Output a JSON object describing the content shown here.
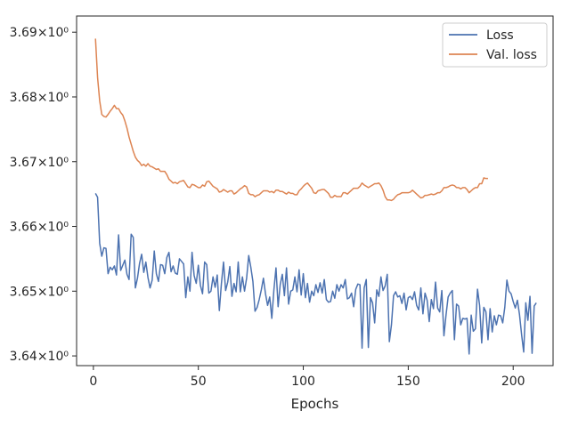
{
  "chart_data": {
    "type": "line",
    "xlabel": "Epochs",
    "ylabel": "",
    "title": "",
    "xlim": [
      -8,
      219
    ],
    "ylim": [
      3.6385,
      3.6925
    ],
    "y_scale": "log",
    "grid": false,
    "legend_position": "top-right",
    "x_ticks": [
      {
        "value": 0,
        "label": "0"
      },
      {
        "value": 50,
        "label": "50"
      },
      {
        "value": 100,
        "label": "100"
      },
      {
        "value": 150,
        "label": "150"
      },
      {
        "value": 200,
        "label": "200"
      }
    ],
    "y_ticks": [
      {
        "value": 3.64,
        "label": "3.64×10⁰"
      },
      {
        "value": 3.65,
        "label": "3.65×10⁰"
      },
      {
        "value": 3.66,
        "label": "3.66×10⁰"
      },
      {
        "value": 3.67,
        "label": "3.67×10⁰"
      },
      {
        "value": 3.68,
        "label": "3.68×10⁰"
      },
      {
        "value": 3.69,
        "label": "3.69×10⁰"
      }
    ],
    "series": [
      {
        "name": "Loss",
        "color": "#4c72b0",
        "x_start": 1,
        "values": [
          3.6651,
          3.6645,
          3.6574,
          3.6554,
          3.6567,
          3.6566,
          3.6527,
          3.6537,
          3.6533,
          3.6539,
          3.6525,
          3.6587,
          3.6532,
          3.654,
          3.6548,
          3.6526,
          3.6518,
          3.6588,
          3.6583,
          3.6505,
          3.652,
          3.6543,
          3.6557,
          3.6529,
          3.6545,
          3.6521,
          3.6505,
          3.6517,
          3.6562,
          3.6527,
          3.6515,
          3.6541,
          3.654,
          3.6527,
          3.6552,
          3.656,
          3.653,
          3.6539,
          3.6528,
          3.6526,
          3.655,
          3.6546,
          3.6542,
          3.649,
          3.6522,
          3.65,
          3.656,
          3.6524,
          3.6512,
          3.654,
          3.6509,
          3.6496,
          3.6545,
          3.6541,
          3.6497,
          3.65,
          3.6522,
          3.6506,
          3.6525,
          3.647,
          3.6512,
          3.6545,
          3.6501,
          3.6514,
          3.6538,
          3.6492,
          3.6512,
          3.6499,
          3.6545,
          3.6499,
          3.6522,
          3.65,
          3.652,
          3.6555,
          3.6537,
          3.6515,
          3.6469,
          3.6475,
          3.6487,
          3.6502,
          3.652,
          3.6496,
          3.6478,
          3.6491,
          3.6458,
          3.6502,
          3.6536,
          3.6476,
          3.651,
          3.6526,
          3.6493,
          3.6536,
          3.648,
          3.65,
          3.6502,
          3.6522,
          3.6499,
          3.6533,
          3.6494,
          3.6527,
          3.649,
          3.6512,
          3.6483,
          3.65,
          3.6493,
          3.651,
          3.6498,
          3.6513,
          3.6497,
          3.6518,
          3.6487,
          3.6483,
          3.6484,
          3.65,
          3.6489,
          3.651,
          3.65,
          3.651,
          3.6505,
          3.6518,
          3.6488,
          3.649,
          3.6497,
          3.6476,
          3.6503,
          3.6511,
          3.651,
          3.6412,
          3.6505,
          3.6518,
          3.6413,
          3.649,
          3.6482,
          3.6451,
          3.6502,
          3.6492,
          3.6522,
          3.6501,
          3.6508,
          3.6526,
          3.6422,
          3.6448,
          3.6493,
          3.6499,
          3.6491,
          3.6493,
          3.6481,
          3.6497,
          3.6471,
          3.649,
          3.6492,
          3.6487,
          3.6499,
          3.6478,
          3.6471,
          3.6505,
          3.6465,
          3.6497,
          3.6486,
          3.6453,
          3.6487,
          3.6473,
          3.6514,
          3.6474,
          3.6468,
          3.6501,
          3.6431,
          3.6463,
          3.6491,
          3.6497,
          3.6501,
          3.6425,
          3.648,
          3.6477,
          3.6448,
          3.6458,
          3.6457,
          3.6458,
          3.6403,
          3.6463,
          3.6438,
          3.6442,
          3.6503,
          3.6478,
          3.642,
          3.6475,
          3.6468,
          3.6425,
          3.6473,
          3.6437,
          3.6462,
          3.6448,
          3.6463,
          3.6462,
          3.6451,
          3.6475,
          3.6517,
          3.65,
          3.6496,
          3.6484,
          3.6474,
          3.6486,
          3.6464,
          3.6433,
          3.6406,
          3.6482,
          3.6455,
          3.6492,
          3.6404,
          3.6477,
          3.6482
        ]
      },
      {
        "name": "Val. loss",
        "color": "#dd8452",
        "x_start": 1,
        "values": [
          3.689,
          3.683,
          3.6794,
          3.6773,
          3.677,
          3.6769,
          3.6773,
          3.6778,
          3.6782,
          3.6787,
          3.6782,
          3.6782,
          3.6776,
          3.6772,
          3.6763,
          3.6752,
          3.6738,
          3.6727,
          3.6716,
          3.6707,
          3.6702,
          3.6699,
          3.6694,
          3.6696,
          3.6693,
          3.6697,
          3.6693,
          3.6692,
          3.669,
          3.6688,
          3.6689,
          3.6685,
          3.6685,
          3.6685,
          3.668,
          3.6673,
          3.667,
          3.6667,
          3.6668,
          3.6666,
          3.6669,
          3.667,
          3.6671,
          3.6666,
          3.6661,
          3.666,
          3.6665,
          3.6664,
          3.6662,
          3.666,
          3.666,
          3.6664,
          3.6662,
          3.6669,
          3.667,
          3.6666,
          3.6662,
          3.666,
          3.6658,
          3.6653,
          3.6654,
          3.6657,
          3.6655,
          3.6653,
          3.6655,
          3.6655,
          3.665,
          3.6652,
          3.6655,
          3.6658,
          3.666,
          3.6663,
          3.6661,
          3.6651,
          3.6649,
          3.6649,
          3.6646,
          3.6648,
          3.6649,
          3.6652,
          3.6655,
          3.6655,
          3.6655,
          3.6653,
          3.6654,
          3.6652,
          3.6656,
          3.6656,
          3.6654,
          3.6654,
          3.6652,
          3.665,
          3.6653,
          3.6651,
          3.6651,
          3.6649,
          3.6649,
          3.6655,
          3.6658,
          3.6662,
          3.6665,
          3.6667,
          3.6663,
          3.6659,
          3.6652,
          3.6651,
          3.6655,
          3.6656,
          3.6657,
          3.6657,
          3.6654,
          3.6651,
          3.6645,
          3.6645,
          3.6648,
          3.6646,
          3.6646,
          3.6646,
          3.6652,
          3.6652,
          3.665,
          3.6653,
          3.6656,
          3.6659,
          3.6659,
          3.6659,
          3.6662,
          3.6667,
          3.6664,
          3.6662,
          3.666,
          3.6662,
          3.6664,
          3.6666,
          3.6666,
          3.6667,
          3.6663,
          3.6656,
          3.6646,
          3.6641,
          3.6641,
          3.664,
          3.6642,
          3.6646,
          3.6649,
          3.665,
          3.6652,
          3.6652,
          3.6652,
          3.6652,
          3.6653,
          3.6656,
          3.6653,
          3.665,
          3.6647,
          3.6644,
          3.6645,
          3.6648,
          3.6648,
          3.6649,
          3.665,
          3.6649,
          3.665,
          3.6652,
          3.6652,
          3.6655,
          3.666,
          3.666,
          3.6661,
          3.6663,
          3.6664,
          3.6663,
          3.666,
          3.666,
          3.6658,
          3.666,
          3.666,
          3.6657,
          3.6652,
          3.6655,
          3.6658,
          3.666,
          3.666,
          3.6666,
          3.6666,
          3.6675,
          3.6674,
          3.6674
        ]
      }
    ]
  }
}
